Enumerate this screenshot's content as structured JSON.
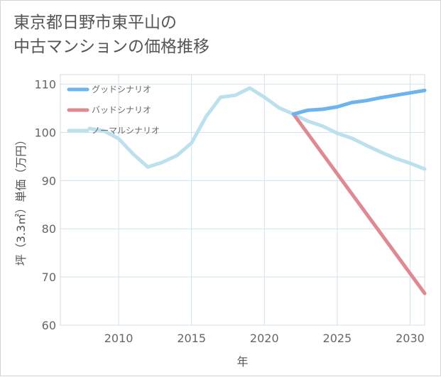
{
  "title_lines": [
    "東京都日野市東平山の",
    "中古マンションの価格推移"
  ],
  "chart_data": {
    "type": "line",
    "xlabel": "年",
    "ylabel": "坪（3.3㎡）単価（万円）",
    "xlim": [
      2006,
      2031
    ],
    "ylim": [
      60,
      112
    ],
    "xticks": [
      2010,
      2015,
      2020,
      2025,
      2030
    ],
    "yticks": [
      60,
      70,
      80,
      90,
      100,
      110
    ],
    "grid": true,
    "legend_position": "top-left",
    "series": [
      {
        "name": "グッドシナリオ",
        "color": "#6cb4ef",
        "x": [
          2022,
          2023,
          2024,
          2025,
          2026,
          2027,
          2028,
          2029,
          2030,
          2031
        ],
        "values": [
          103.8,
          104.6,
          104.8,
          105.3,
          106.2,
          106.6,
          107.2,
          107.7,
          108.2,
          108.7
        ]
      },
      {
        "name": "バッドシナリオ",
        "color": "#df8a92",
        "x": [
          2022,
          2031
        ],
        "values": [
          103.8,
          66.6
        ]
      },
      {
        "name": "ノーマルシナリオ",
        "color": "#bde0ef",
        "x": [
          2008,
          2009,
          2010,
          2011,
          2012,
          2013,
          2014,
          2015,
          2016,
          2017,
          2018,
          2019,
          2020,
          2021,
          2022,
          2023,
          2024,
          2025,
          2026,
          2027,
          2028,
          2029,
          2030,
          2031
        ],
        "values": [
          100.8,
          100.3,
          98.7,
          95.5,
          92.8,
          93.8,
          95.2,
          97.8,
          103.3,
          107.3,
          107.7,
          109.2,
          107.3,
          105.1,
          103.8,
          102.3,
          101.3,
          99.8,
          98.8,
          97.3,
          95.9,
          94.6,
          93.6,
          92.4
        ]
      }
    ]
  }
}
